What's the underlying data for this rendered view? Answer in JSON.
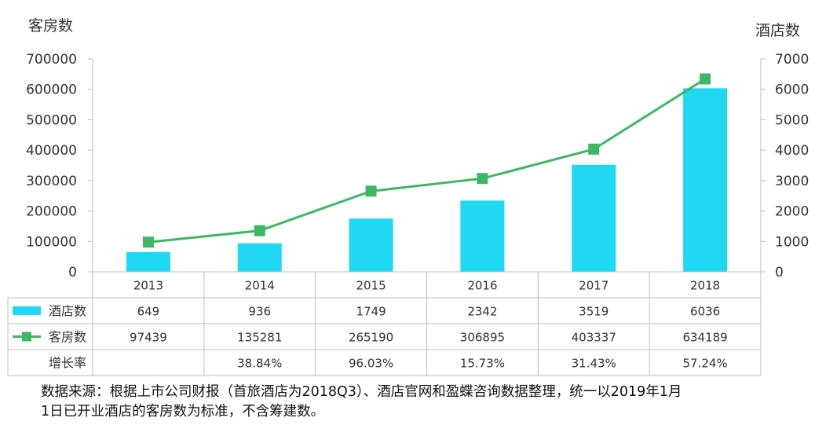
{
  "chart_data": {
    "type": "bar",
    "categories": [
      "2013",
      "2014",
      "2015",
      "2016",
      "2017",
      "2018"
    ],
    "series": [
      {
        "name": "酒店数",
        "type": "bar",
        "axis": "right",
        "color": "#1ed8f4",
        "values": [
          649,
          936,
          1749,
          2342,
          3519,
          6036
        ]
      },
      {
        "name": "客房数",
        "type": "line",
        "axis": "left",
        "color": "#3cb864",
        "values": [
          97439,
          135281,
          265190,
          306895,
          403337,
          634189
        ]
      }
    ],
    "growth": {
      "name": "增长率",
      "values": [
        "",
        "38.84%",
        "96.03%",
        "15.73%",
        "31.43%",
        "57.24%"
      ]
    },
    "left_axis": {
      "title": "客房数",
      "min": 0,
      "max": 700000,
      "step": 100000
    },
    "right_axis": {
      "title": "酒店数",
      "min": 0,
      "max": 7000,
      "step": 1000
    },
    "grid": false,
    "legend": "data-table"
  },
  "source": {
    "line1": "数据来源：根据上市公司财报（首旅酒店为2018Q3）、酒店官网和盈蝶咨询数据整理，统一以2019年1月",
    "line2": "1日已开业酒店的客房数为标准，不含筹建数。"
  }
}
